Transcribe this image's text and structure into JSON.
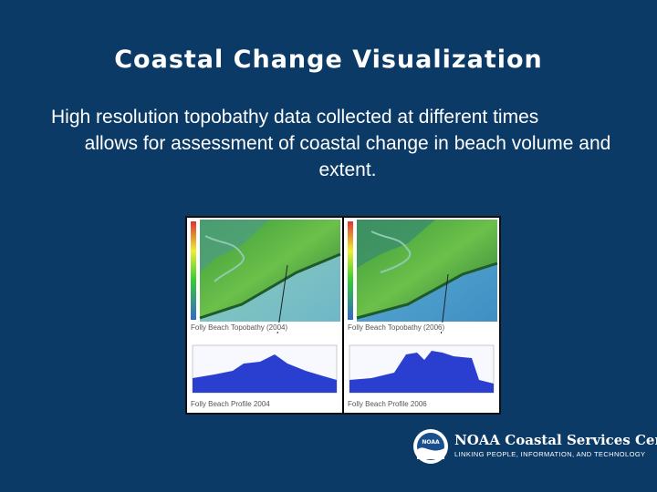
{
  "slide": {
    "title": "Coastal Change Visualization",
    "body_line1": "High resolution topobathy data collected at different times",
    "body_line2": "allows for assessment of coastal change in beach volume and extent."
  },
  "figure": {
    "panels": [
      {
        "topo_label": "Folly Beach Topobathy (2004)",
        "profile_label": "Folly Beach Profile 2004"
      },
      {
        "topo_label": "Folly Beach Topobathy (2006)",
        "profile_label": "Folly Beach Profile 2006"
      }
    ]
  },
  "logo": {
    "emblem_text": "NOAA",
    "main_text": "NOAA Coastal Services Center",
    "sub_text": "LINKING PEOPLE, INFORMATION, AND TECHNOLOGY"
  },
  "colors": {
    "background": "#0b3a66",
    "text": "#ffffff"
  }
}
